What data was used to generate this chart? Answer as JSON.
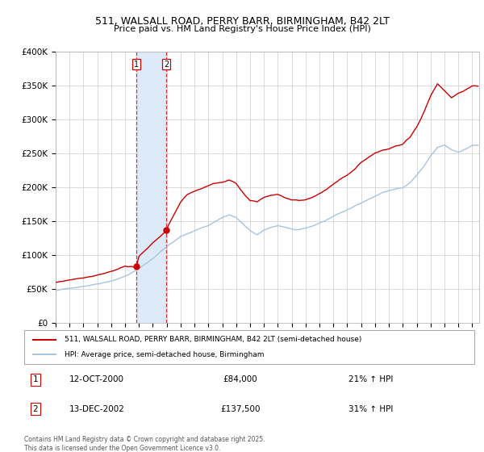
{
  "title": "511, WALSALL ROAD, PERRY BARR, BIRMINGHAM, B42 2LT",
  "subtitle": "Price paid vs. HM Land Registry's House Price Index (HPI)",
  "legend_line1": "511, WALSALL ROAD, PERRY BARR, BIRMINGHAM, B42 2LT (semi-detached house)",
  "legend_line2": "HPI: Average price, semi-detached house, Birmingham",
  "purchase1_date": "12-OCT-2000",
  "purchase1_price": "£84,000",
  "purchase1_hpi": "21% ↑ HPI",
  "purchase2_date": "13-DEC-2002",
  "purchase2_price": "£137,500",
  "purchase2_hpi": "31% ↑ HPI",
  "footer": "Contains HM Land Registry data © Crown copyright and database right 2025.\nThis data is licensed under the Open Government Licence v3.0.",
  "hpi_color": "#a8c4de",
  "price_color": "#cc0000",
  "purchase1_x": 2000.79,
  "purchase1_y": 84000,
  "purchase2_x": 2002.96,
  "purchase2_y": 137500,
  "vline1_x": 2000.79,
  "vline2_x": 2002.96,
  "shade_color": "#ddeaf7",
  "ylim": [
    0,
    400000
  ],
  "xlim_start": 1995,
  "xlim_end": 2025.5,
  "background_color": "#ffffff",
  "grid_color": "#cccccc",
  "hpi_keypoints": [
    [
      1995.0,
      48000
    ],
    [
      1996.0,
      51000
    ],
    [
      1997.0,
      55000
    ],
    [
      1998.0,
      59000
    ],
    [
      1999.0,
      64000
    ],
    [
      2000.0,
      71000
    ],
    [
      2001.0,
      82000
    ],
    [
      2002.0,
      97000
    ],
    [
      2003.0,
      115000
    ],
    [
      2004.0,
      130000
    ],
    [
      2005.0,
      138000
    ],
    [
      2006.0,
      146000
    ],
    [
      2007.0,
      158000
    ],
    [
      2007.5,
      162000
    ],
    [
      2008.0,
      158000
    ],
    [
      2008.5,
      148000
    ],
    [
      2009.0,
      138000
    ],
    [
      2009.5,
      132000
    ],
    [
      2010.0,
      138000
    ],
    [
      2010.5,
      142000
    ],
    [
      2011.0,
      145000
    ],
    [
      2011.5,
      143000
    ],
    [
      2012.0,
      140000
    ],
    [
      2012.5,
      138000
    ],
    [
      2013.0,
      140000
    ],
    [
      2013.5,
      143000
    ],
    [
      2014.0,
      148000
    ],
    [
      2014.5,
      152000
    ],
    [
      2015.0,
      158000
    ],
    [
      2015.5,
      163000
    ],
    [
      2016.0,
      167000
    ],
    [
      2016.5,
      172000
    ],
    [
      2017.0,
      178000
    ],
    [
      2017.5,
      183000
    ],
    [
      2018.0,
      188000
    ],
    [
      2018.5,
      193000
    ],
    [
      2019.0,
      196000
    ],
    [
      2019.5,
      199000
    ],
    [
      2020.0,
      200000
    ],
    [
      2020.5,
      207000
    ],
    [
      2021.0,
      218000
    ],
    [
      2021.5,
      230000
    ],
    [
      2022.0,
      246000
    ],
    [
      2022.5,
      258000
    ],
    [
      2023.0,
      262000
    ],
    [
      2023.5,
      255000
    ],
    [
      2024.0,
      252000
    ],
    [
      2024.5,
      256000
    ],
    [
      2025.0,
      262000
    ]
  ],
  "price_keypoints": [
    [
      1995.0,
      60000
    ],
    [
      1996.0,
      64000
    ],
    [
      1997.0,
      68000
    ],
    [
      1998.0,
      73000
    ],
    [
      1999.0,
      79000
    ],
    [
      2000.0,
      87000
    ],
    [
      2000.79,
      84000
    ],
    [
      2001.0,
      100000
    ],
    [
      2002.0,
      119000
    ],
    [
      2002.96,
      137500
    ],
    [
      2003.0,
      140000
    ],
    [
      2003.5,
      160000
    ],
    [
      2004.0,
      180000
    ],
    [
      2004.5,
      192000
    ],
    [
      2005.0,
      196000
    ],
    [
      2005.5,
      200000
    ],
    [
      2006.0,
      205000
    ],
    [
      2007.0,
      210000
    ],
    [
      2007.5,
      213000
    ],
    [
      2008.0,
      207000
    ],
    [
      2008.5,
      192000
    ],
    [
      2009.0,
      180000
    ],
    [
      2009.5,
      178000
    ],
    [
      2010.0,
      185000
    ],
    [
      2010.5,
      188000
    ],
    [
      2011.0,
      190000
    ],
    [
      2011.5,
      186000
    ],
    [
      2012.0,
      183000
    ],
    [
      2012.5,
      182000
    ],
    [
      2013.0,
      183000
    ],
    [
      2013.5,
      187000
    ],
    [
      2014.0,
      193000
    ],
    [
      2014.5,
      198000
    ],
    [
      2015.0,
      207000
    ],
    [
      2015.5,
      215000
    ],
    [
      2016.0,
      222000
    ],
    [
      2016.5,
      230000
    ],
    [
      2017.0,
      240000
    ],
    [
      2017.5,
      248000
    ],
    [
      2018.0,
      255000
    ],
    [
      2018.5,
      260000
    ],
    [
      2019.0,
      262000
    ],
    [
      2019.5,
      266000
    ],
    [
      2020.0,
      268000
    ],
    [
      2020.5,
      278000
    ],
    [
      2021.0,
      293000
    ],
    [
      2021.5,
      315000
    ],
    [
      2022.0,
      340000
    ],
    [
      2022.5,
      358000
    ],
    [
      2023.0,
      348000
    ],
    [
      2023.5,
      338000
    ],
    [
      2024.0,
      345000
    ],
    [
      2024.5,
      350000
    ],
    [
      2025.0,
      355000
    ]
  ]
}
